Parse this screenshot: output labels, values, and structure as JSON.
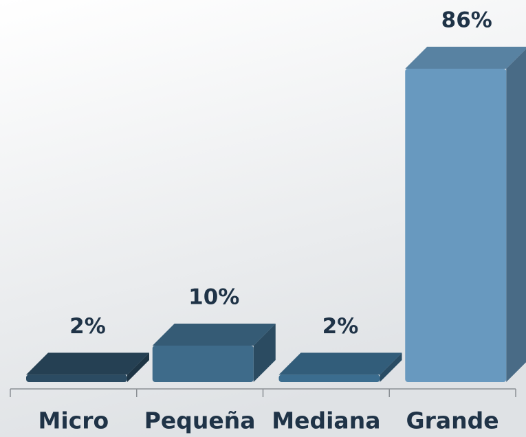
{
  "chart_data": {
    "type": "bar3d",
    "categories": [
      "Micro",
      "Pequeña",
      "Mediana",
      "Grande"
    ],
    "values": [
      2,
      10,
      2,
      86
    ],
    "value_labels": [
      "2%",
      "10%",
      "2%",
      "86%"
    ],
    "colors": [
      "#2b4b62",
      "#3e6b8a",
      "#3b6d8f",
      "#6899bf"
    ]
  }
}
